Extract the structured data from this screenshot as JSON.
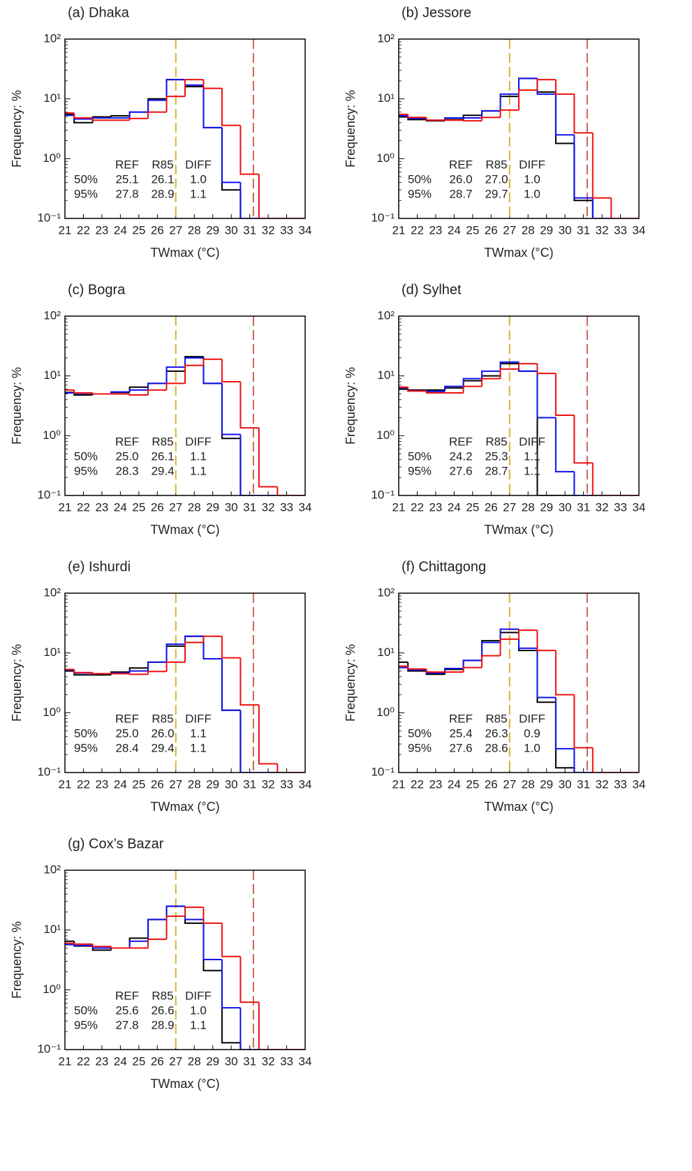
{
  "chart_data": [
    {
      "type": "histogram",
      "title": "(a) Dhaka",
      "xlabel": "TWmax (°C)",
      "ylabel": "Frequency: %",
      "bins": [
        20.5,
        21.5,
        22.5,
        23.5,
        24.5,
        25.5,
        26.5,
        27.5,
        28.5,
        29.5,
        30.5,
        31.5,
        32.5,
        33.5,
        34.5
      ],
      "xlim": [
        21,
        34
      ],
      "xticks": [
        21,
        22,
        23,
        24,
        25,
        26,
        27,
        28,
        29,
        30,
        31,
        32,
        33,
        34
      ],
      "ylim": [
        0.1,
        100
      ],
      "log_y": true,
      "yticks": [
        {
          "value": 0.1,
          "label": "10⁻¹"
        },
        {
          "value": 1,
          "label": "10⁰"
        },
        {
          "value": 10,
          "label": "10¹"
        },
        {
          "value": 100,
          "label": "10²"
        }
      ],
      "series": [
        {
          "color": "#000000",
          "values": [
            5.5,
            4,
            5,
            5.2,
            6,
            10,
            21,
            16,
            3.3,
            0.3,
            0,
            0,
            0,
            0
          ]
        },
        {
          "name": "REF",
          "color": "#1010ee",
          "values": [
            5.3,
            4.6,
            4.8,
            4.8,
            6,
            9.5,
            21,
            17,
            3.3,
            0.4,
            0,
            0,
            0,
            0
          ]
        },
        {
          "name": "R85",
          "color": "#ee1010",
          "values": [
            5.8,
            4.8,
            4.4,
            4.4,
            4.7,
            6,
            11,
            21,
            15,
            3.6,
            0.55,
            0,
            0,
            0
          ]
        }
      ],
      "vlines": [
        {
          "x": 27,
          "color": "#d9b233"
        },
        {
          "x": 31.2,
          "color": "#cc6655"
        }
      ],
      "diff_label": "DIFF",
      "diff_color": "#1a7a1a",
      "stats": [
        {
          "label": "50%",
          "values": [
            "25.1",
            "26.1",
            "1.0"
          ]
        },
        {
          "label": "95%",
          "values": [
            "27.8",
            "28.9",
            "1.1"
          ]
        }
      ]
    },
    {
      "type": "histogram",
      "title": "(b) Jessore",
      "xlabel": "TWmax (°C)",
      "ylabel": "Frequency: %",
      "bins": [
        20.5,
        21.5,
        22.5,
        23.5,
        24.5,
        25.5,
        26.5,
        27.5,
        28.5,
        29.5,
        30.5,
        31.5,
        32.5,
        33.5,
        34.5
      ],
      "xlim": [
        21,
        34
      ],
      "xticks": [
        21,
        22,
        23,
        24,
        25,
        26,
        27,
        28,
        29,
        30,
        31,
        32,
        33,
        34
      ],
      "ylim": [
        0.1,
        100
      ],
      "log_y": true,
      "yticks": [
        {
          "value": 0.1,
          "label": "10⁻¹"
        },
        {
          "value": 1,
          "label": "10⁰"
        },
        {
          "value": 10,
          "label": "10¹"
        },
        {
          "value": 100,
          "label": "10²"
        }
      ],
      "series": [
        {
          "color": "#000000",
          "values": [
            5,
            4.5,
            4.3,
            4.5,
            5.3,
            6.3,
            11,
            22,
            13,
            1.8,
            0.2,
            0,
            0,
            0
          ]
        },
        {
          "name": "REF",
          "color": "#1010ee",
          "values": [
            5.2,
            4.7,
            4.4,
            4.8,
            4.8,
            6.3,
            12,
            22,
            12,
            2.5,
            0.22,
            0,
            0,
            0
          ]
        },
        {
          "name": "R85",
          "color": "#ee1010",
          "values": [
            5.5,
            4.9,
            4.4,
            4.4,
            4.3,
            4.9,
            6.5,
            14,
            21,
            12,
            2.7,
            0.22,
            0,
            0
          ]
        }
      ],
      "vlines": [
        {
          "x": 27,
          "color": "#d9b233"
        },
        {
          "x": 31.2,
          "color": "#cc6655"
        }
      ],
      "diff_label": "DIFF",
      "diff_color": "#1a7a1a",
      "stats": [
        {
          "label": "50%",
          "values": [
            "26.0",
            "27.0",
            "1.0"
          ]
        },
        {
          "label": "95%",
          "values": [
            "28.7",
            "29.7",
            "1.0"
          ]
        }
      ]
    },
    {
      "type": "histogram",
      "title": "(c) Bogra",
      "xlabel": "TWmax (°C)",
      "ylabel": "Frequency: %",
      "bins": [
        20.5,
        21.5,
        22.5,
        23.5,
        24.5,
        25.5,
        26.5,
        27.5,
        28.5,
        29.5,
        30.5,
        31.5,
        32.5,
        33.5,
        34.5
      ],
      "xlim": [
        21,
        34
      ],
      "xticks": [
        21,
        22,
        23,
        24,
        25,
        26,
        27,
        28,
        29,
        30,
        31,
        32,
        33,
        34
      ],
      "ylim": [
        0.1,
        100
      ],
      "log_y": true,
      "yticks": [
        {
          "value": 0.1,
          "label": "10⁻¹"
        },
        {
          "value": 1,
          "label": "10⁰"
        },
        {
          "value": 10,
          "label": "10¹"
        },
        {
          "value": 100,
          "label": "10²"
        }
      ],
      "series": [
        {
          "color": "#000000",
          "values": [
            5.3,
            4.8,
            5,
            5.3,
            6.5,
            7.5,
            12,
            21,
            7.5,
            0.9,
            0,
            0,
            0,
            0
          ]
        },
        {
          "name": "REF",
          "color": "#1010ee",
          "values": [
            5.2,
            5.1,
            5,
            5.4,
            5.8,
            7.5,
            14,
            20,
            7.5,
            1.05,
            0,
            0,
            0,
            0
          ]
        },
        {
          "name": "R85",
          "color": "#ee1010",
          "values": [
            5.8,
            5.2,
            5,
            5,
            4.8,
            5.8,
            7.5,
            15,
            19,
            8,
            1.35,
            0.14,
            0,
            0
          ]
        }
      ],
      "vlines": [
        {
          "x": 27,
          "color": "#d9b233"
        },
        {
          "x": 31.2,
          "color": "#cc6655"
        }
      ],
      "diff_label": "DIFF",
      "diff_color": "#1a7a1a",
      "stats": [
        {
          "label": "50%",
          "values": [
            "25.0",
            "26.1",
            "1.1"
          ]
        },
        {
          "label": "95%",
          "values": [
            "28.3",
            "29.4",
            "1.1"
          ]
        }
      ]
    },
    {
      "type": "histogram",
      "title": "(d) Sylhet",
      "xlabel": "TWmax (°C)",
      "ylabel": "Frequency: %",
      "bins": [
        20.5,
        21.5,
        22.5,
        23.5,
        24.5,
        25.5,
        26.5,
        27.5,
        28.5,
        29.5,
        30.5,
        31.5,
        32.5,
        33.5,
        34.5
      ],
      "xlim": [
        21,
        34
      ],
      "xticks": [
        21,
        22,
        23,
        24,
        25,
        26,
        27,
        28,
        29,
        30,
        31,
        32,
        33,
        34
      ],
      "ylim": [
        0.1,
        100
      ],
      "log_y": true,
      "yticks": [
        {
          "value": 0.1,
          "label": "10⁻¹"
        },
        {
          "value": 1,
          "label": "10⁰"
        },
        {
          "value": 10,
          "label": "10¹"
        },
        {
          "value": 100,
          "label": "10²"
        }
      ],
      "series": [
        {
          "color": "#000000",
          "values": [
            6,
            5.8,
            5.8,
            6.3,
            8.3,
            10,
            16,
            12,
            0,
            0,
            0,
            0,
            0,
            0
          ]
        },
        {
          "name": "REF",
          "color": "#1010ee",
          "values": [
            6.3,
            5.6,
            5.5,
            6.7,
            9,
            12,
            17,
            12,
            2,
            0.25,
            0,
            0,
            0,
            0
          ]
        },
        {
          "name": "R85",
          "color": "#ee1010",
          "values": [
            6.5,
            5.6,
            5.2,
            5.2,
            6.7,
            9,
            13,
            16,
            11,
            2.2,
            0.35,
            0,
            0,
            0
          ]
        }
      ],
      "vlines": [
        {
          "x": 27,
          "color": "#d9b233"
        },
        {
          "x": 31.2,
          "color": "#cc6655"
        }
      ],
      "diff_label": "DIFF",
      "diff_color": "#1a7a1a",
      "stats": [
        {
          "label": "50%",
          "values": [
            "24.2",
            "25.3",
            "1.1"
          ]
        },
        {
          "label": "95%",
          "values": [
            "27.6",
            "28.7",
            "1.1"
          ]
        }
      ]
    },
    {
      "type": "histogram",
      "title": "(e) Ishurdi",
      "xlabel": "TWmax (°C)",
      "ylabel": "Frequency: %",
      "bins": [
        20.5,
        21.5,
        22.5,
        23.5,
        24.5,
        25.5,
        26.5,
        27.5,
        28.5,
        29.5,
        30.5,
        31.5,
        32.5,
        33.5,
        34.5
      ],
      "xlim": [
        21,
        34
      ],
      "xticks": [
        21,
        22,
        23,
        24,
        25,
        26,
        27,
        28,
        29,
        30,
        31,
        32,
        33,
        34
      ],
      "ylim": [
        0.1,
        100
      ],
      "log_y": true,
      "yticks": [
        {
          "value": 0.1,
          "label": "10⁻¹"
        },
        {
          "value": 1,
          "label": "10⁰"
        },
        {
          "value": 10,
          "label": "10¹"
        },
        {
          "value": 100,
          "label": "10²"
        }
      ],
      "series": [
        {
          "color": "#000000",
          "values": [
            5,
            4.3,
            4.3,
            4.8,
            5.6,
            7,
            13,
            19,
            8,
            1.1,
            0,
            0,
            0,
            0
          ]
        },
        {
          "name": "REF",
          "color": "#1010ee",
          "values": [
            5.2,
            4.6,
            4.5,
            4.6,
            5,
            7,
            14,
            19,
            8,
            1.1,
            0,
            0,
            0,
            0
          ]
        },
        {
          "name": "R85",
          "color": "#ee1010",
          "values": [
            5.3,
            4.7,
            4.5,
            4.5,
            4.4,
            4.9,
            7,
            15,
            19,
            8.3,
            1.35,
            0.14,
            0,
            0
          ]
        }
      ],
      "vlines": [
        {
          "x": 27,
          "color": "#d9b233"
        },
        {
          "x": 31.2,
          "color": "#cc6655"
        }
      ],
      "diff_label": "DIFF",
      "diff_color": "#1a7a1a",
      "stats": [
        {
          "label": "50%",
          "values": [
            "25.0",
            "26.0",
            "1.1"
          ]
        },
        {
          "label": "95%",
          "values": [
            "28.4",
            "29.4",
            "1.1"
          ]
        }
      ]
    },
    {
      "type": "histogram",
      "title": "(f) Chittagong",
      "xlabel": "TWmax (°C)",
      "ylabel": "Frequency: %",
      "bins": [
        20.5,
        21.5,
        22.5,
        23.5,
        24.5,
        25.5,
        26.5,
        27.5,
        28.5,
        29.5,
        30.5,
        31.5,
        32.5,
        33.5,
        34.5
      ],
      "xlim": [
        21,
        34
      ],
      "xticks": [
        21,
        22,
        23,
        24,
        25,
        26,
        27,
        28,
        29,
        30,
        31,
        32,
        33,
        34
      ],
      "ylim": [
        0.1,
        100
      ],
      "log_y": true,
      "yticks": [
        {
          "value": 0.1,
          "label": "10⁻¹"
        },
        {
          "value": 1,
          "label": "10⁰"
        },
        {
          "value": 10,
          "label": "10¹"
        },
        {
          "value": 100,
          "label": "10²"
        }
      ],
      "series": [
        {
          "color": "#000000",
          "values": [
            7,
            5,
            4.4,
            5.3,
            7.5,
            16,
            22,
            11,
            1.5,
            0.12,
            0,
            0,
            0,
            0
          ]
        },
        {
          "name": "REF",
          "color": "#1010ee",
          "values": [
            5.7,
            5.2,
            4.6,
            5.5,
            7.5,
            15,
            25,
            12,
            1.8,
            0.25,
            0,
            0,
            0,
            0
          ]
        },
        {
          "name": "R85",
          "color": "#ee1010",
          "values": [
            6,
            5.4,
            4.8,
            4.8,
            5.7,
            9,
            17,
            24,
            11,
            2,
            0.26,
            0,
            0,
            0
          ]
        }
      ],
      "vlines": [
        {
          "x": 27,
          "color": "#d9b233"
        },
        {
          "x": 31.2,
          "color": "#cc6655"
        }
      ],
      "diff_label": "DIFF",
      "diff_color": "#1a7a1a",
      "stats": [
        {
          "label": "50%",
          "values": [
            "25.4",
            "26.3",
            "0.9"
          ]
        },
        {
          "label": "95%",
          "values": [
            "27.6",
            "28.6",
            "1.0"
          ]
        }
      ]
    },
    {
      "type": "histogram",
      "title": "(g) Cox’s Bazar",
      "xlabel": "TWmax (°C)",
      "ylabel": "Frequency: %",
      "bins": [
        20.5,
        21.5,
        22.5,
        23.5,
        24.5,
        25.5,
        26.5,
        27.5,
        28.5,
        29.5,
        30.5,
        31.5,
        32.5,
        33.5,
        34.5
      ],
      "xlim": [
        21,
        34
      ],
      "xticks": [
        21,
        22,
        23,
        24,
        25,
        26,
        27,
        28,
        29,
        30,
        31,
        32,
        33,
        34
      ],
      "ylim": [
        0.1,
        100
      ],
      "log_y": true,
      "yticks": [
        {
          "value": 0.1,
          "label": "10⁻¹"
        },
        {
          "value": 1,
          "label": "10⁰"
        },
        {
          "value": 10,
          "label": "10¹"
        },
        {
          "value": 100,
          "label": "10²"
        }
      ],
      "series": [
        {
          "color": "#000000",
          "values": [
            6.5,
            5.4,
            4.6,
            5,
            7.3,
            15,
            25,
            13,
            2.1,
            0.13,
            0,
            0,
            0,
            0
          ]
        },
        {
          "name": "REF",
          "color": "#1010ee",
          "values": [
            5.7,
            5.5,
            5,
            5,
            6.5,
            15,
            25,
            15,
            3.2,
            0.5,
            0,
            0,
            0,
            0
          ]
        },
        {
          "name": "R85",
          "color": "#ee1010",
          "values": [
            6,
            5.8,
            5.3,
            5,
            5,
            7,
            17,
            24,
            13,
            3.6,
            0.62,
            0,
            0,
            0
          ]
        }
      ],
      "vlines": [
        {
          "x": 27,
          "color": "#d9b233"
        },
        {
          "x": 31.2,
          "color": "#cc6655"
        }
      ],
      "diff_label": "DIFF",
      "diff_color": "#1a7a1a",
      "stats": [
        {
          "label": "50%",
          "values": [
            "25.6",
            "26.6",
            "1.0"
          ]
        },
        {
          "label": "95%",
          "values": [
            "27.8",
            "28.9",
            "1.1"
          ]
        }
      ]
    }
  ]
}
